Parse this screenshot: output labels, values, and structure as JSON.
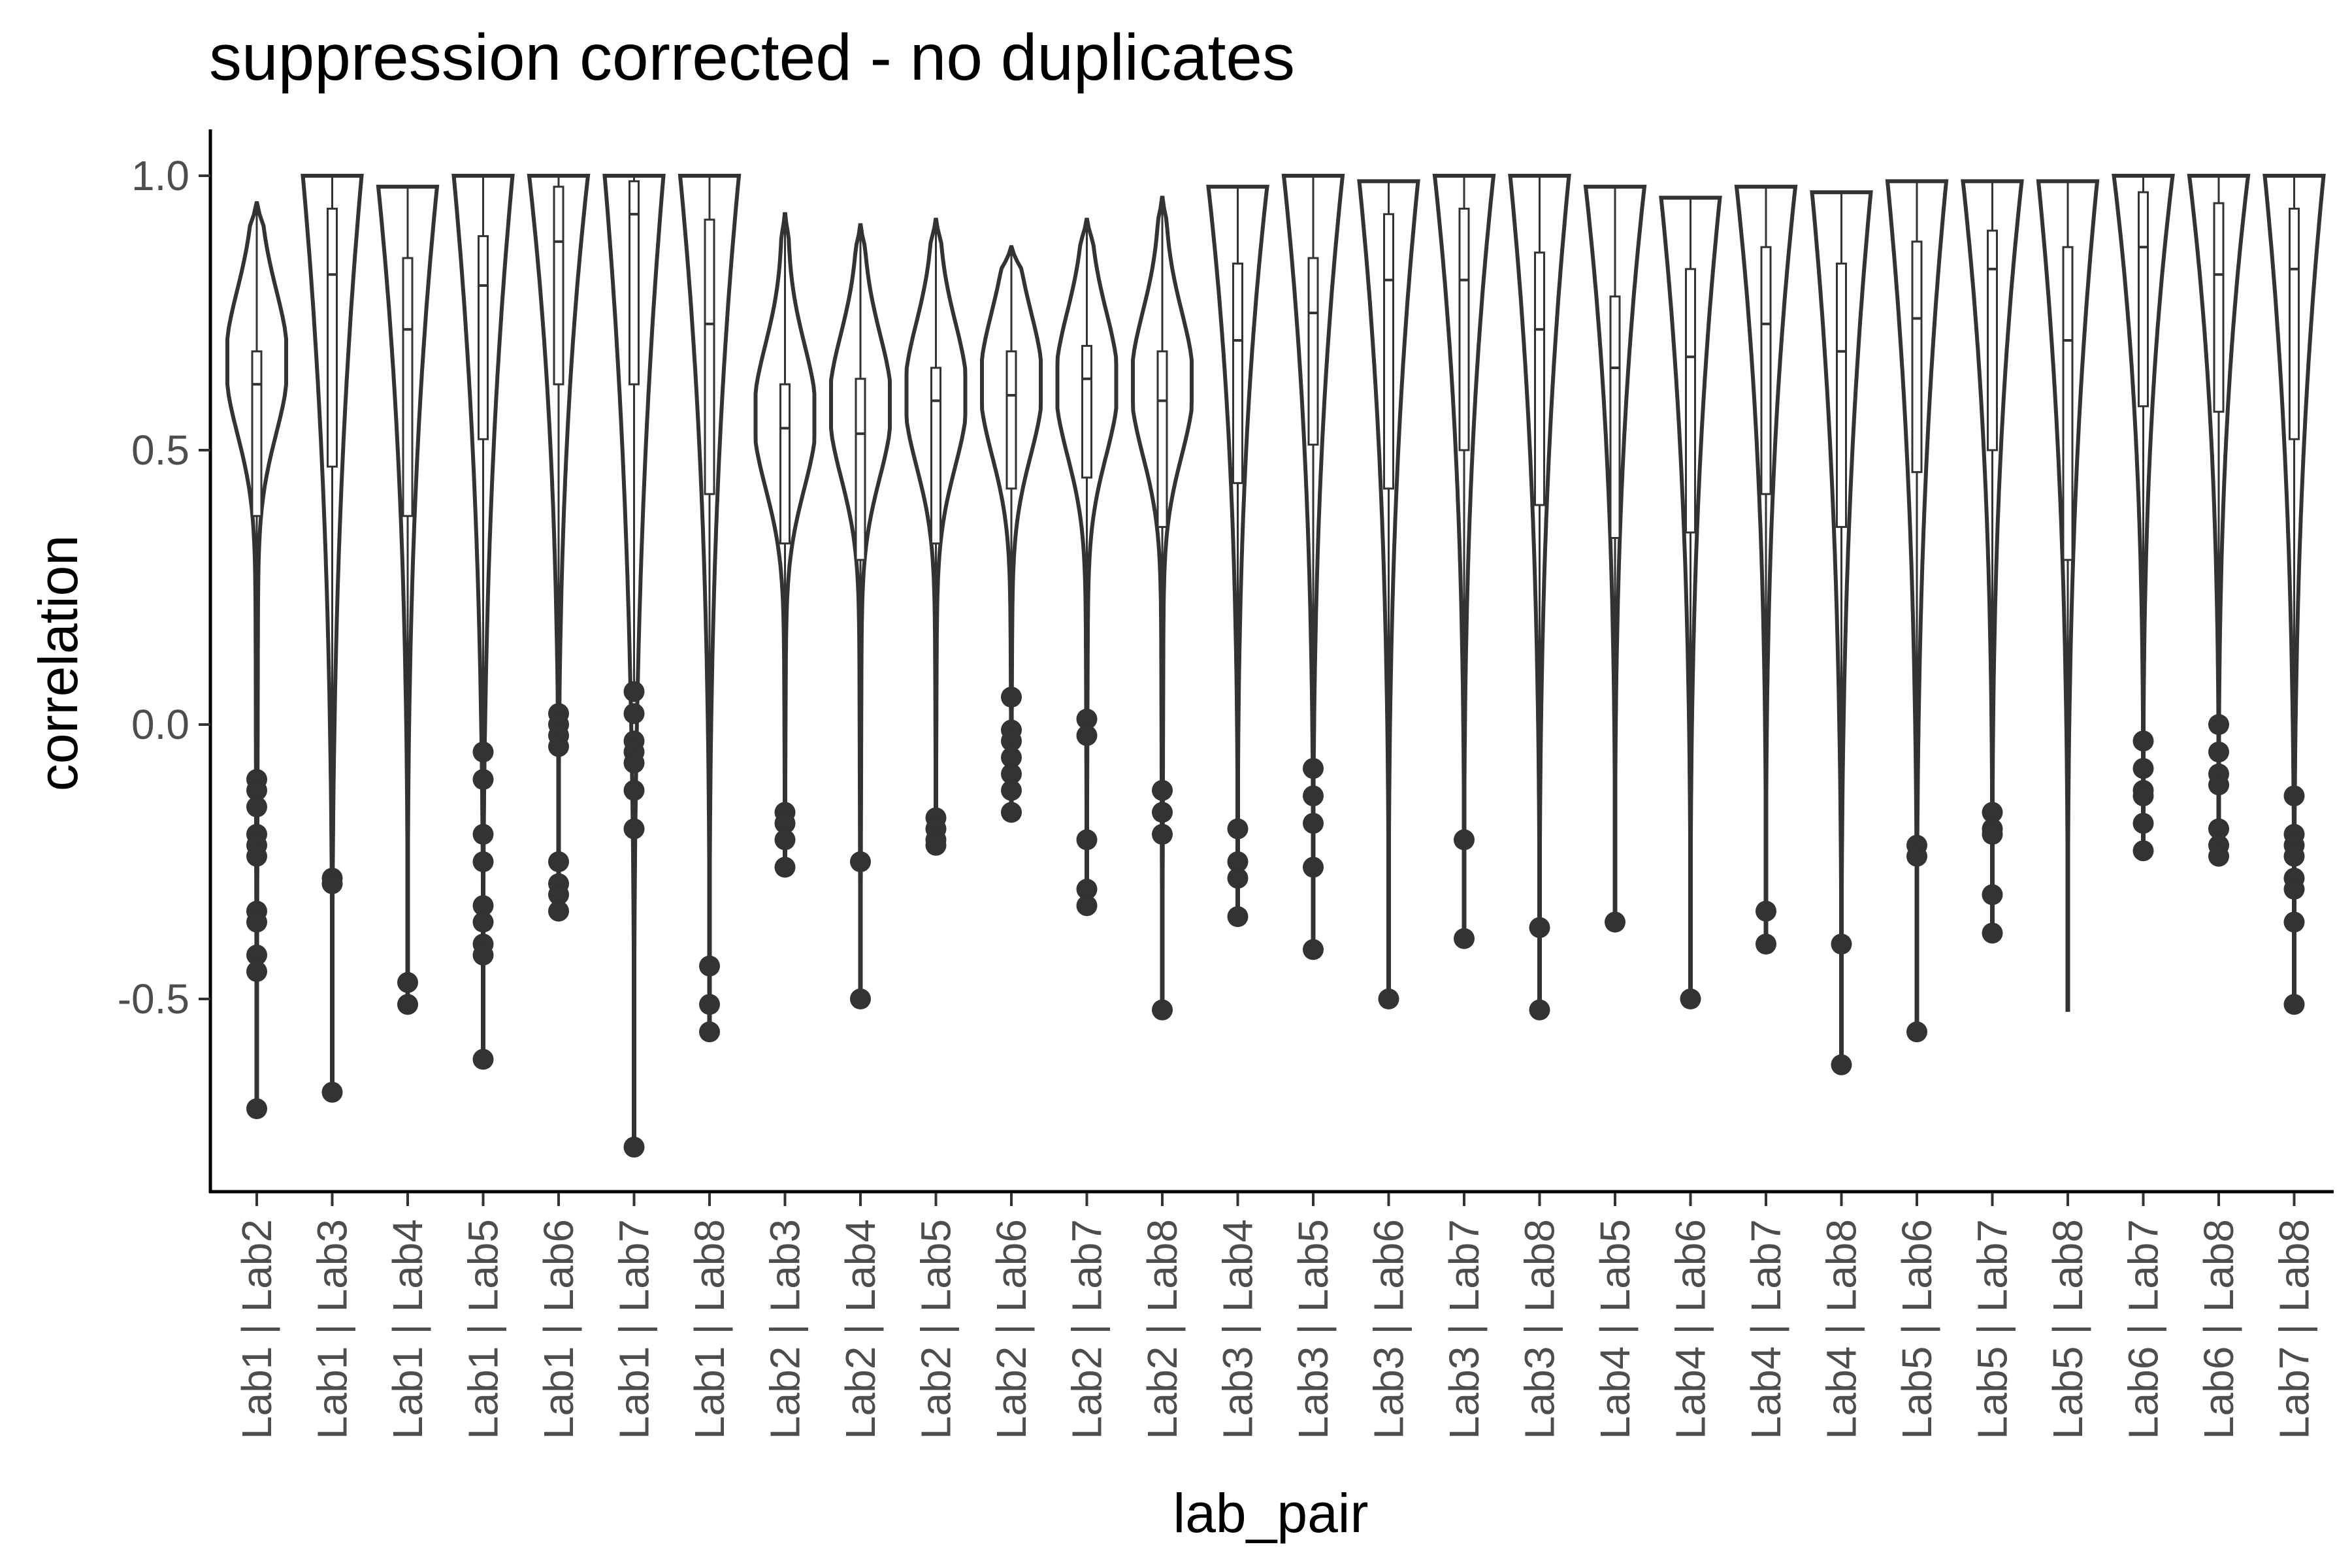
{
  "chart_data": {
    "type": "violin",
    "title": "suppression corrected - no duplicates",
    "xlabel": "lab_pair",
    "ylabel": "correlation",
    "ylim": [
      -0.85,
      1.08
    ],
    "yticks": [
      {
        "value": 1.0,
        "label": "1.0"
      },
      {
        "value": 0.5,
        "label": "0.5"
      },
      {
        "value": 0.0,
        "label": "0.0"
      },
      {
        "value": -0.5,
        "label": "-0.5"
      }
    ],
    "categories": [
      "Lab1 | Lab2",
      "Lab1 | Lab3",
      "Lab1 | Lab4",
      "Lab1 | Lab5",
      "Lab1 | Lab6",
      "Lab1 | Lab7",
      "Lab1 | Lab8",
      "Lab2 | Lab3",
      "Lab2 | Lab4",
      "Lab2 | Lab5",
      "Lab2 | Lab6",
      "Lab2 | Lab7",
      "Lab2 | Lab8",
      "Lab3 | Lab4",
      "Lab3 | Lab5",
      "Lab3 | Lab6",
      "Lab3 | Lab7",
      "Lab3 | Lab8",
      "Lab4 | Lab5",
      "Lab4 | Lab6",
      "Lab4 | Lab7",
      "Lab4 | Lab8",
      "Lab5 | Lab6",
      "Lab5 | Lab7",
      "Lab5 | Lab8",
      "Lab6 | Lab7",
      "Lab6 | Lab8",
      "Lab7 | Lab8"
    ],
    "series": [
      {
        "min": -0.7,
        "max": 0.95,
        "mode": 0.66,
        "shape": "peak",
        "q1": 0.38,
        "median": 0.62,
        "q3": 0.68,
        "outliers": [
          -0.1,
          -0.12,
          -0.15,
          -0.2,
          -0.22,
          -0.24,
          -0.34,
          -0.36,
          -0.42,
          -0.45,
          -0.7
        ]
      },
      {
        "min": -0.67,
        "max": 1.0,
        "mode": 1.0,
        "shape": "top",
        "q1": 0.47,
        "median": 0.82,
        "q3": 0.94,
        "outliers": [
          -0.28,
          -0.29,
          -0.67
        ]
      },
      {
        "min": -0.51,
        "max": 0.98,
        "mode": 0.97,
        "shape": "top",
        "q1": 0.38,
        "median": 0.72,
        "q3": 0.85,
        "outliers": [
          -0.47,
          -0.51
        ]
      },
      {
        "min": -0.61,
        "max": 1.0,
        "mode": 1.0,
        "shape": "top",
        "q1": 0.52,
        "median": 0.8,
        "q3": 0.89,
        "outliers": [
          -0.05,
          -0.1,
          -0.2,
          -0.25,
          -0.33,
          -0.36,
          -0.4,
          -0.42,
          -0.61
        ]
      },
      {
        "min": -0.34,
        "max": 1.0,
        "mode": 1.0,
        "shape": "top",
        "q1": 0.62,
        "median": 0.88,
        "q3": 0.98,
        "outliers": [
          0.02,
          0.0,
          -0.02,
          -0.04,
          -0.25,
          -0.29,
          -0.31,
          -0.34
        ]
      },
      {
        "min": -0.77,
        "max": 1.0,
        "mode": 1.0,
        "shape": "top",
        "q1": 0.62,
        "median": 0.93,
        "q3": 0.99,
        "outliers": [
          0.06,
          0.02,
          -0.03,
          -0.05,
          -0.07,
          -0.12,
          -0.19,
          -0.77
        ]
      },
      {
        "min": -0.56,
        "max": 1.0,
        "mode": 1.0,
        "shape": "top",
        "q1": 0.42,
        "median": 0.73,
        "q3": 0.92,
        "outliers": [
          -0.44,
          -0.51,
          -0.56
        ]
      },
      {
        "min": -0.26,
        "max": 0.93,
        "mode": 0.56,
        "shape": "peak",
        "q1": 0.33,
        "median": 0.54,
        "q3": 0.62,
        "outliers": [
          -0.16,
          -0.18,
          -0.21,
          -0.26
        ]
      },
      {
        "min": -0.5,
        "max": 0.91,
        "mode": 0.58,
        "shape": "peak",
        "q1": 0.3,
        "median": 0.53,
        "q3": 0.63,
        "outliers": [
          -0.25,
          -0.5
        ]
      },
      {
        "min": -0.22,
        "max": 0.92,
        "mode": 0.6,
        "shape": "peak",
        "q1": 0.33,
        "median": 0.59,
        "q3": 0.65,
        "outliers": [
          -0.17,
          -0.19,
          -0.21,
          -0.22
        ]
      },
      {
        "min": -0.16,
        "max": 0.87,
        "mode": 0.62,
        "shape": "peak",
        "q1": 0.43,
        "median": 0.6,
        "q3": 0.68,
        "outliers": [
          0.05,
          -0.01,
          -0.03,
          -0.06,
          -0.09,
          -0.12,
          -0.16
        ]
      },
      {
        "min": -0.33,
        "max": 0.92,
        "mode": 0.62,
        "shape": "peak",
        "q1": 0.45,
        "median": 0.63,
        "q3": 0.69,
        "outliers": [
          0.01,
          -0.02,
          -0.21,
          -0.3,
          -0.33
        ]
      },
      {
        "min": -0.52,
        "max": 0.96,
        "mode": 0.62,
        "shape": "peak",
        "q1": 0.36,
        "median": 0.59,
        "q3": 0.68,
        "outliers": [
          -0.12,
          -0.16,
          -0.2,
          -0.52
        ]
      },
      {
        "min": -0.35,
        "max": 0.98,
        "mode": 0.9,
        "shape": "top",
        "q1": 0.44,
        "median": 0.7,
        "q3": 0.84,
        "outliers": [
          -0.19,
          -0.25,
          -0.28,
          -0.35
        ]
      },
      {
        "min": -0.41,
        "max": 1.0,
        "mode": 0.98,
        "shape": "top",
        "q1": 0.51,
        "median": 0.75,
        "q3": 0.85,
        "outliers": [
          -0.08,
          -0.13,
          -0.18,
          -0.26,
          -0.41
        ]
      },
      {
        "min": -0.5,
        "max": 0.99,
        "mode": 0.98,
        "shape": "top",
        "q1": 0.43,
        "median": 0.81,
        "q3": 0.93,
        "outliers": [
          -0.5
        ]
      },
      {
        "min": -0.39,
        "max": 1.0,
        "mode": 0.98,
        "shape": "top",
        "q1": 0.5,
        "median": 0.81,
        "q3": 0.94,
        "outliers": [
          -0.21,
          -0.39
        ]
      },
      {
        "min": -0.52,
        "max": 1.0,
        "mode": 0.98,
        "shape": "top",
        "q1": 0.4,
        "median": 0.72,
        "q3": 0.86,
        "outliers": [
          -0.37,
          -0.52
        ]
      },
      {
        "min": -0.36,
        "max": 0.98,
        "mode": 0.88,
        "shape": "top",
        "q1": 0.34,
        "median": 0.65,
        "q3": 0.78,
        "outliers": [
          -0.36
        ]
      },
      {
        "min": -0.5,
        "max": 0.96,
        "mode": 0.9,
        "shape": "top",
        "q1": 0.35,
        "median": 0.67,
        "q3": 0.83,
        "outliers": [
          -0.5
        ]
      },
      {
        "min": -0.4,
        "max": 0.98,
        "mode": 0.92,
        "shape": "top",
        "q1": 0.42,
        "median": 0.73,
        "q3": 0.87,
        "outliers": [
          -0.34,
          -0.4
        ]
      },
      {
        "min": -0.62,
        "max": 0.97,
        "mode": 0.92,
        "shape": "top",
        "q1": 0.36,
        "median": 0.68,
        "q3": 0.84,
        "outliers": [
          -0.4,
          -0.62
        ]
      },
      {
        "min": -0.56,
        "max": 0.99,
        "mode": 0.96,
        "shape": "top",
        "q1": 0.46,
        "median": 0.74,
        "q3": 0.88,
        "outliers": [
          -0.22,
          -0.24,
          -0.56
        ]
      },
      {
        "min": -0.38,
        "max": 0.99,
        "mode": 0.96,
        "shape": "top",
        "q1": 0.5,
        "median": 0.83,
        "q3": 0.9,
        "outliers": [
          -0.16,
          -0.19,
          -0.2,
          -0.31,
          -0.38
        ]
      },
      {
        "min": -0.52,
        "max": 0.99,
        "mode": 0.96,
        "shape": "top",
        "q1": 0.3,
        "median": 0.7,
        "q3": 0.87,
        "outliers": []
      },
      {
        "min": -0.23,
        "max": 1.0,
        "mode": 1.0,
        "shape": "top",
        "q1": 0.58,
        "median": 0.87,
        "q3": 0.97,
        "outliers": [
          -0.03,
          -0.08,
          -0.12,
          -0.13,
          -0.18,
          -0.23
        ]
      },
      {
        "min": -0.24,
        "max": 1.0,
        "mode": 1.0,
        "shape": "top",
        "q1": 0.57,
        "median": 0.82,
        "q3": 0.95,
        "outliers": [
          0.0,
          -0.05,
          -0.09,
          -0.11,
          -0.19,
          -0.22,
          -0.24
        ]
      },
      {
        "min": -0.51,
        "max": 1.0,
        "mode": 1.0,
        "shape": "top",
        "q1": 0.52,
        "median": 0.83,
        "q3": 0.94,
        "outliers": [
          -0.13,
          -0.2,
          -0.22,
          -0.24,
          -0.28,
          -0.3,
          -0.36,
          -0.51
        ]
      }
    ],
    "grid": false,
    "legend": "none"
  }
}
